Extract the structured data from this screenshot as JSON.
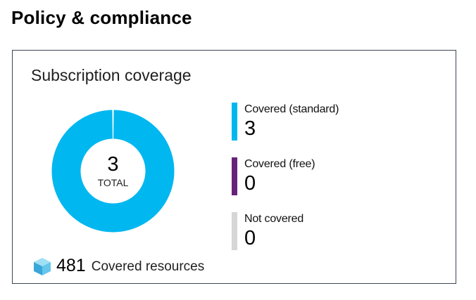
{
  "page": {
    "title": "Policy & compliance"
  },
  "tile": {
    "title": "Subscription coverage",
    "donut": {
      "total_value": "3",
      "total_label": "TOTAL"
    },
    "legend": [
      {
        "label": "Covered (standard)",
        "value": "3",
        "color": "#00b7f0"
      },
      {
        "label": "Covered (free)",
        "value": "0",
        "color": "#68217a"
      },
      {
        "label": "Not covered",
        "value": "0",
        "color": "#d6d6d6"
      }
    ],
    "resources": {
      "count": "481",
      "label": "Covered resources",
      "icon": "cube-icon"
    }
  },
  "chart_data": {
    "type": "pie",
    "categories": [
      "Covered (standard)",
      "Covered (free)",
      "Not covered"
    ],
    "values": [
      3,
      0,
      0
    ],
    "colors": [
      "#00b7f0",
      "#68217a",
      "#d6d6d6"
    ],
    "title": "Subscription coverage"
  }
}
